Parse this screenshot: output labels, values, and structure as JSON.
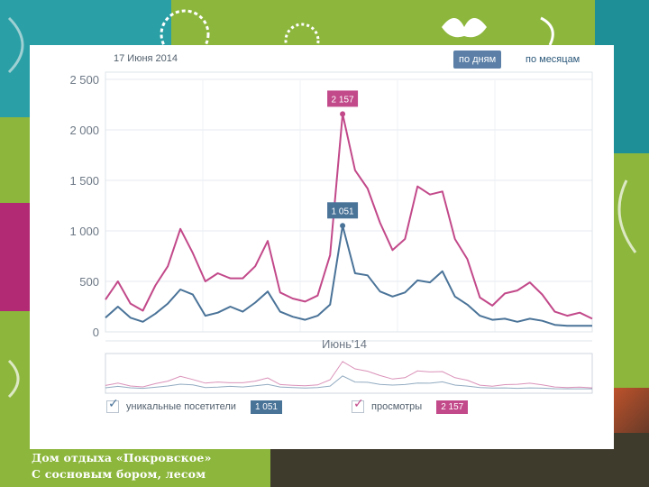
{
  "header": {
    "date": "17 Июня 2014",
    "tab_days": "по дням",
    "tab_months": "по месяцам"
  },
  "legend": {
    "unique_label": "уникальные посетители",
    "unique_value": "1 051",
    "views_label": "просмотры",
    "views_value": "2 157"
  },
  "caption": {
    "line1": "Дом отдыха «Покровское»",
    "line2": "С сосновым бором, лесом"
  },
  "colors": {
    "views": "#c2498a",
    "unique": "#4a7398",
    "accent_tab": "#5b7fa6",
    "background": "#8cb63c"
  },
  "chart_data": {
    "type": "line",
    "xlabel": "Июнь'14",
    "ylim": [
      0,
      2500
    ],
    "yticks": [
      "0",
      "500",
      "1 000",
      "1 500",
      "2 000",
      "2 500"
    ],
    "grid": true,
    "annotations": [
      {
        "series": "просмотры",
        "label": "2 157",
        "value": 2157
      },
      {
        "series": "уникальные посетители",
        "label": "1 051",
        "value": 1051
      }
    ],
    "series": [
      {
        "name": "просмотры",
        "values": [
          320,
          500,
          280,
          210,
          460,
          650,
          1020,
          780,
          500,
          580,
          530,
          530,
          650,
          900,
          390,
          330,
          300,
          360,
          760,
          2157,
          1600,
          1420,
          1080,
          810,
          920,
          1440,
          1360,
          1390,
          920,
          720,
          340,
          260,
          380,
          410,
          490,
          370,
          200,
          160,
          190,
          130
        ]
      },
      {
        "name": "уникальные посетители",
        "values": [
          140,
          250,
          140,
          100,
          180,
          280,
          420,
          370,
          160,
          190,
          250,
          200,
          290,
          400,
          200,
          150,
          120,
          160,
          270,
          1051,
          580,
          560,
          400,
          350,
          390,
          510,
          490,
          600,
          350,
          270,
          160,
          120,
          130,
          100,
          130,
          110,
          70,
          60,
          60,
          60
        ]
      }
    ]
  }
}
